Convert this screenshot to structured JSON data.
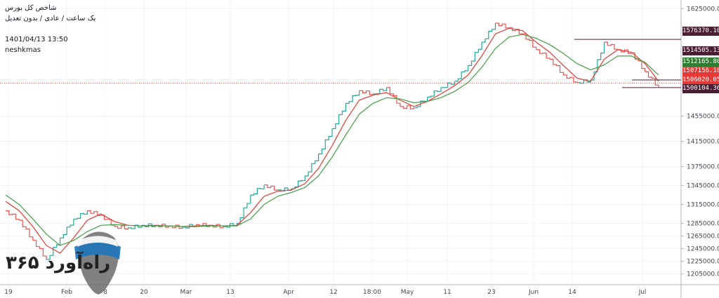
{
  "header": {
    "title": "شاخص کل بورس",
    "subtitle": "یک ساعت / عادی / بدون تعدیل",
    "datetime": "1401/04/13 13:50",
    "author": "neshkmas"
  },
  "watermark": {
    "text": "راه‌آورد ۳۶۵"
  },
  "colors": {
    "up": "#26a69a",
    "down": "#ef5350",
    "ma_fast": "#e53935",
    "ma_slow": "#43a047",
    "tag_dark": "#4a1e33",
    "tag_green": "#2e7d32",
    "tag_red": "#e53935",
    "current_line": "#ef5350"
  },
  "chart_data": {
    "type": "line",
    "title": "شاخص کل بورس",
    "xlabel": "",
    "ylabel": "",
    "ylim": [
      1188000,
      1632000
    ],
    "y_ticks": [
      1625000,
      1455000,
      1415000,
      1375000,
      1345000,
      1315000,
      1285000,
      1265000,
      1245000,
      1225000,
      1205000
    ],
    "x_ticks": [
      "19",
      "Feb",
      "8",
      "20",
      "Mar",
      "13",
      "Apr",
      "12",
      "18:00",
      "May",
      "11",
      "23",
      "Jun",
      "14",
      "Jul"
    ],
    "x": [
      0,
      1,
      2,
      3,
      4,
      5,
      6,
      7,
      8,
      9,
      10,
      11,
      12,
      13,
      14,
      15,
      16,
      17,
      18,
      19,
      20,
      21,
      22,
      23,
      24,
      25,
      26,
      27,
      28,
      29,
      30,
      31,
      32,
      33,
      34,
      35,
      36,
      37,
      38,
      39,
      40,
      41,
      42,
      43,
      44,
      45,
      46,
      47,
      48
    ],
    "series": [
      {
        "name": "price",
        "values": [
          1305000,
          1290000,
          1258000,
          1228000,
          1262000,
          1292000,
          1305000,
          1298000,
          1280000,
          1278000,
          1282000,
          1282000,
          1281000,
          1279000,
          1283000,
          1282000,
          1280000,
          1285000,
          1330000,
          1346000,
          1338000,
          1340000,
          1360000,
          1395000,
          1435000,
          1475000,
          1495000,
          1490000,
          1500000,
          1470000,
          1468000,
          1485000,
          1500000,
          1510000,
          1535000,
          1572000,
          1602000,
          1595000,
          1585000,
          1560000,
          1545000,
          1520000,
          1508000,
          1512000,
          1572000,
          1560000,
          1555000,
          1525000,
          1500000
        ]
      },
      {
        "name": "ma-fast",
        "values": [
          1320000,
          1305000,
          1280000,
          1250000,
          1238000,
          1262000,
          1290000,
          1300000,
          1288000,
          1282000,
          1281000,
          1282000,
          1281000,
          1280000,
          1281000,
          1282000,
          1281000,
          1282000,
          1302000,
          1328000,
          1336000,
          1338000,
          1348000,
          1372000,
          1408000,
          1448000,
          1480000,
          1488000,
          1492000,
          1480000,
          1470000,
          1478000,
          1490000,
          1503000,
          1520000,
          1550000,
          1585000,
          1594000,
          1590000,
          1572000,
          1556000,
          1535000,
          1515000,
          1510000,
          1545000,
          1560000,
          1556000,
          1538000,
          1510000
        ]
      },
      {
        "name": "ma-slow",
        "values": [
          1330000,
          1315000,
          1292000,
          1268000,
          1250000,
          1258000,
          1272000,
          1282000,
          1283000,
          1282000,
          1281000,
          1281000,
          1281000,
          1280000,
          1280000,
          1281000,
          1281000,
          1281000,
          1292000,
          1315000,
          1328000,
          1334000,
          1342000,
          1360000,
          1390000,
          1425000,
          1458000,
          1475000,
          1484000,
          1482000,
          1476000,
          1478000,
          1484000,
          1494000,
          1508000,
          1532000,
          1562000,
          1580000,
          1584000,
          1578000,
          1568000,
          1554000,
          1538000,
          1528000,
          1536000,
          1550000,
          1550000,
          1540000,
          1520000
        ]
      }
    ],
    "price_tags": [
      {
        "label": "1576370.10",
        "value": 1576370.1,
        "style": "dark"
      },
      {
        "label": "1514505.13",
        "value": 1514505.13,
        "style": "dark"
      },
      {
        "label": "1512165.80",
        "value": 1512165.8,
        "style": "green"
      },
      {
        "label": "1507156.10",
        "value": 1507156.1,
        "style": "red"
      },
      {
        "label": "1506020.05",
        "value": 1506020.05,
        "style": "red"
      },
      {
        "label": "1500104.36",
        "value": 1500104.36,
        "style": "dark"
      }
    ],
    "current_price": 1507156.1
  }
}
